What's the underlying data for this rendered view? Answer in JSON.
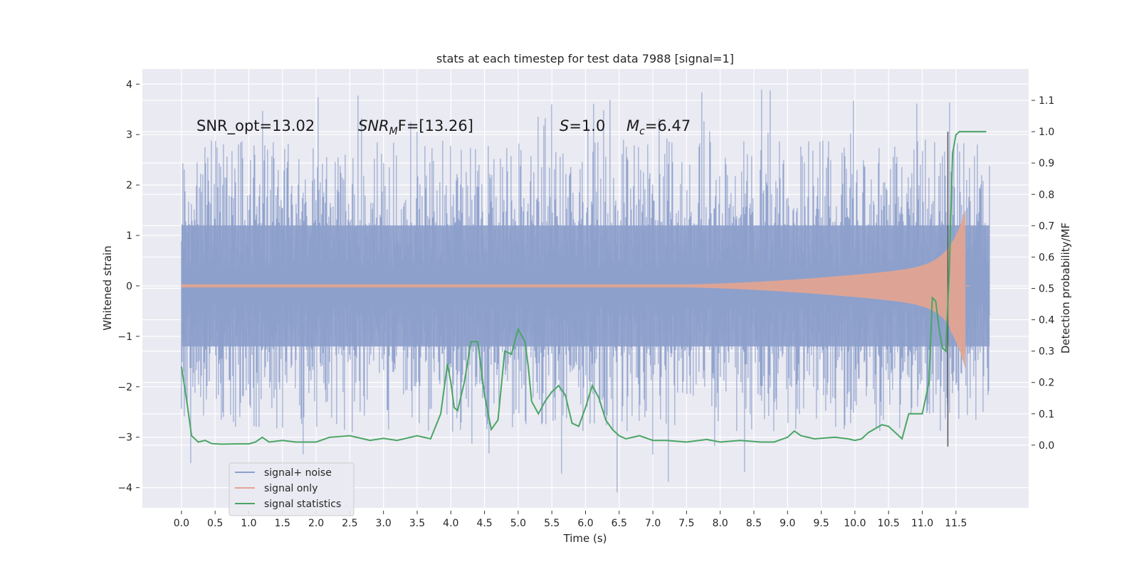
{
  "chart_data": {
    "type": "line",
    "title": "stats at each timestep for test data 7988 [signal=1]",
    "xlabel": "Time (s)",
    "ylabel": "Whitened strain",
    "ylabel_right": "Detection probability/MF",
    "xlim": [
      -0.58,
      12.58
    ],
    "ylim": [
      -4.4,
      4.3
    ],
    "ylim_right": [
      -0.2,
      1.2
    ],
    "x_ticks": [
      "0.0",
      "0.5",
      "1.0",
      "1.5",
      "2.0",
      "2.5",
      "3.0",
      "3.5",
      "4.0",
      "4.5",
      "5.0",
      "5.5",
      "6.0",
      "6.5",
      "7.0",
      "7.5",
      "8.0",
      "8.5",
      "9.0",
      "9.5",
      "10.0",
      "10.5",
      "11.0",
      "11.5"
    ],
    "y_ticks": [
      "4",
      "3",
      "2",
      "1",
      "0",
      "−1",
      "−2",
      "−3",
      "−4"
    ],
    "y_ticks_right": [
      "1.1",
      "1.0",
      "0.9",
      "0.8",
      "0.7",
      "0.6",
      "0.5",
      "0.4",
      "0.3",
      "0.2",
      "0.1",
      "0.0"
    ],
    "grid": true,
    "legend_position": "lower-left",
    "annotations": {
      "snr_opt": "SNR_opt=13.02",
      "snr_mf_sym": "SNR",
      "snr_mf_sub": "M",
      "snr_mf_rest": "F=[13.26]",
      "s_sym": "S",
      "s_rest": "=1.0",
      "mc_sym": "M",
      "mc_sub": "c",
      "mc_rest": "=6.47"
    },
    "merger_time": 11.38,
    "series": [
      {
        "name": "signal+ noise",
        "color": "#8da0cb",
        "t_start": 0.0,
        "t_end": 12.0,
        "envelope_pos_max": 3.9,
        "envelope_neg_min": -4.1,
        "rms_band": 1.2
      },
      {
        "name": "signal only",
        "color": "#e5a48f",
        "t_start": 0.0,
        "t_end": 11.7,
        "chirp_start": 7.4,
        "peak_amplitude": 1.55,
        "peak_time": 11.65
      },
      {
        "name": "signal statistics",
        "color": "#4aa564",
        "x": [
          0.0,
          0.08,
          0.15,
          0.25,
          0.35,
          0.45,
          0.6,
          0.8,
          1.0,
          1.1,
          1.2,
          1.3,
          1.5,
          1.7,
          2.0,
          2.2,
          2.5,
          2.8,
          3.0,
          3.2,
          3.5,
          3.7,
          3.85,
          3.95,
          4.0,
          4.05,
          4.1,
          4.2,
          4.3,
          4.4,
          4.5,
          4.6,
          4.7,
          4.8,
          4.9,
          5.0,
          5.1,
          5.15,
          5.2,
          5.3,
          5.4,
          5.5,
          5.6,
          5.7,
          5.8,
          5.9,
          6.0,
          6.1,
          6.2,
          6.3,
          6.4,
          6.5,
          6.6,
          6.8,
          7.0,
          7.2,
          7.5,
          7.8,
          8.0,
          8.3,
          8.6,
          8.8,
          9.0,
          9.1,
          9.2,
          9.4,
          9.7,
          9.9,
          10.0,
          10.1,
          10.2,
          10.4,
          10.5,
          10.6,
          10.7,
          10.8,
          10.9,
          11.0,
          11.1,
          11.15,
          11.2,
          11.25,
          11.3,
          11.35,
          11.4,
          11.45,
          11.5,
          11.55,
          11.6,
          11.65,
          11.7,
          11.8,
          11.9,
          11.95
        ],
        "y": [
          0.25,
          0.14,
          0.03,
          0.01,
          0.015,
          0.005,
          0.003,
          0.004,
          0.004,
          0.01,
          0.025,
          0.01,
          0.015,
          0.01,
          0.01,
          0.025,
          0.03,
          0.015,
          0.022,
          0.015,
          0.03,
          0.02,
          0.1,
          0.26,
          0.2,
          0.12,
          0.11,
          0.2,
          0.33,
          0.33,
          0.16,
          0.05,
          0.08,
          0.3,
          0.29,
          0.37,
          0.33,
          0.25,
          0.14,
          0.1,
          0.14,
          0.17,
          0.19,
          0.16,
          0.07,
          0.06,
          0.12,
          0.19,
          0.15,
          0.08,
          0.05,
          0.03,
          0.02,
          0.03,
          0.015,
          0.015,
          0.01,
          0.018,
          0.01,
          0.015,
          0.01,
          0.01,
          0.025,
          0.045,
          0.03,
          0.02,
          0.025,
          0.02,
          0.015,
          0.02,
          0.04,
          0.065,
          0.06,
          0.04,
          0.02,
          0.1,
          0.1,
          0.1,
          0.2,
          0.47,
          0.46,
          0.37,
          0.31,
          0.3,
          0.55,
          0.93,
          0.99,
          1.0,
          1.0,
          1.0,
          1.0,
          1.0,
          1.0,
          1.0
        ]
      }
    ]
  }
}
